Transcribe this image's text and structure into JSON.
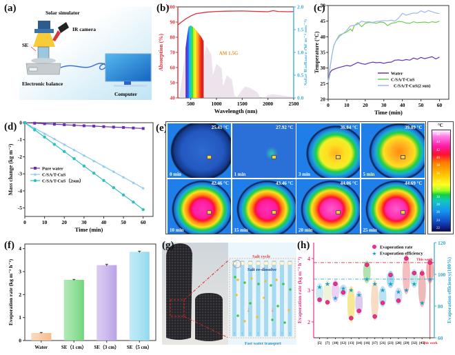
{
  "panel_labels": {
    "a": "(a)",
    "b": "(b)",
    "c": "(c)",
    "d": "(d)",
    "e": "(e)",
    "f": "(f)",
    "g": "(g)",
    "h": "(h)"
  },
  "schematic_a": {
    "solar_simulator": "Solar simulator",
    "ir_camera": "IR camera",
    "se": "SE",
    "balance": "Electronic balance",
    "computer": "Computer"
  },
  "schematic_g": {
    "salt_cycle": "Salt cycle",
    "salt_redissolve": "Salt re-dissolve",
    "fast_water": "Fast water transport"
  },
  "ir_images": {
    "frames": [
      {
        "time": "0 min",
        "temp": "25.41 °C",
        "state": "cold"
      },
      {
        "time": "1 min",
        "temp": "27.92 °C",
        "state": "cold2"
      },
      {
        "time": "3 min",
        "temp": "36.84 °C",
        "state": "warm"
      },
      {
        "time": "5 min",
        "temp": "39.09 °C",
        "state": "warm2"
      },
      {
        "time": "10 min",
        "temp": "42.46 °C",
        "state": "hot"
      },
      {
        "time": "15 min",
        "temp": "43.46 °C",
        "state": "hot"
      },
      {
        "time": "20 min",
        "temp": "44.06 °C",
        "state": "hot2"
      },
      {
        "time": "25 min",
        "temp": "44.69 °C",
        "state": "hot2"
      }
    ],
    "colorbar_unit": "°C",
    "colorbar_ticks": [
      "48",
      "44",
      "42",
      "40",
      "38",
      "36",
      "34",
      "32",
      "30",
      "28",
      "26",
      "24",
      "22"
    ]
  },
  "chart_data": [
    {
      "id": "b",
      "type": "line+area",
      "xlabel": "Wavelength (nm)",
      "ylabel": "Absorption (%)",
      "y2label": "Solar Radiance (W m⁻² nm⁻¹)",
      "xlim": [
        250,
        2500
      ],
      "ylim": [
        40,
        100
      ],
      "y2lim": [
        0,
        2.0
      ],
      "xticks": [
        500,
        1000,
        1500,
        2000,
        2500
      ],
      "yticks": [
        40,
        50,
        60,
        70,
        80,
        90,
        100
      ],
      "y2ticks": [
        0.0,
        0.5,
        1.0,
        1.5,
        2.0
      ],
      "annotation": "AM 1.5G",
      "absorption": {
        "name": "Absorption",
        "x": [
          250,
          300,
          400,
          500,
          600,
          800,
          1000,
          1200,
          1500,
          1700,
          2000,
          2100,
          2200,
          2400,
          2500
        ],
        "y": [
          88,
          89.5,
          92,
          94,
          95.5,
          96.5,
          97,
          97.2,
          97.3,
          97.1,
          96.8,
          97.5,
          97,
          96.8,
          96.9
        ]
      },
      "am15g": {
        "name": "AM 1.5G",
        "x": [
          280,
          350,
          400,
          450,
          500,
          550,
          600,
          650,
          700,
          750,
          760,
          800,
          900,
          930,
          1000,
          1100,
          1130,
          1200,
          1300,
          1350,
          1400,
          1450,
          1550,
          1650,
          1800,
          1850,
          1950,
          2000,
          2100,
          2300,
          2500
        ],
        "y": [
          0,
          0.6,
          1.1,
          1.55,
          1.6,
          1.55,
          1.5,
          1.42,
          1.35,
          1.25,
          0.9,
          1.15,
          0.95,
          0.5,
          0.75,
          0.65,
          0.25,
          0.5,
          0.4,
          0.05,
          0.02,
          0.1,
          0.25,
          0.22,
          0.12,
          0.0,
          0.02,
          0.06,
          0.08,
          0.05,
          0.02
        ]
      }
    },
    {
      "id": "c",
      "type": "line",
      "xlabel": "Time (min)",
      "ylabel": "Temperature (°C)",
      "xlim": [
        0,
        65
      ],
      "ylim": [
        20,
        50
      ],
      "xticks": [
        0,
        10,
        20,
        30,
        40,
        50,
        60
      ],
      "yticks": [
        20,
        25,
        30,
        35,
        40,
        45,
        50
      ],
      "series": [
        {
          "name": "Water",
          "color": "#6a2fb0",
          "x": [
            0,
            1,
            2,
            4,
            6,
            8,
            10,
            12,
            14,
            16,
            18,
            20,
            22,
            24,
            26,
            28,
            30,
            32,
            34,
            36,
            38,
            40,
            42,
            44,
            46,
            48,
            50,
            52,
            54,
            56,
            58,
            60
          ],
          "y": [
            25.5,
            28.5,
            29.3,
            29.8,
            30.2,
            30.5,
            30.8,
            30.6,
            31.2,
            31.8,
            31.4,
            31.2,
            31.6,
            31.9,
            31.7,
            31.8,
            31.5,
            31.8,
            31.9,
            32.5,
            32.6,
            32.4,
            32.7,
            32.5,
            33.2,
            32.8,
            33.4,
            33.0,
            33.3,
            33.6,
            32.9,
            33.5
          ]
        },
        {
          "name": "C/SA/T-CuS",
          "color": "#6ccf4f",
          "x": [
            0,
            1,
            2,
            3,
            4,
            6,
            8,
            10,
            12,
            13,
            14,
            16,
            18,
            20,
            22,
            24,
            26,
            28,
            30,
            32,
            34,
            36,
            38,
            40,
            42,
            44,
            46,
            48,
            50,
            52,
            54,
            56,
            58,
            60
          ],
          "y": [
            25.5,
            30,
            34,
            37,
            38.5,
            40.5,
            41,
            41.5,
            42.5,
            41.8,
            43.5,
            44.5,
            43.2,
            44.3,
            44.6,
            44.5,
            44.3,
            44.7,
            44.6,
            43.6,
            44.3,
            44.5,
            44.9,
            44.8,
            44.4,
            44.3,
            44.8,
            44.5,
            44.6,
            44.7,
            44.5,
            44.8,
            44.6,
            45
          ]
        },
        {
          "name": "C/SA/T-CuS(2 sun)",
          "color": "#9fb6f0",
          "x": [
            0,
            1,
            2,
            3,
            4,
            6,
            8,
            10,
            12,
            14,
            16,
            18,
            20,
            22,
            24,
            26,
            28,
            30,
            32,
            34,
            36,
            38,
            40,
            42,
            44,
            46,
            48,
            50,
            52,
            54,
            56,
            58,
            60
          ],
          "y": [
            25.5,
            30,
            34,
            37.2,
            38.5,
            40,
            41,
            42,
            43.5,
            43.6,
            44,
            45,
            44.7,
            44.8,
            44.6,
            44.9,
            45,
            45.2,
            45.1,
            45.3,
            45,
            46,
            47.5,
            46.9,
            47.3,
            47.6,
            47.5,
            48.3,
            47.8,
            48.4,
            48,
            47.6,
            47.4
          ]
        }
      ]
    },
    {
      "id": "d",
      "type": "line",
      "xlabel": "Time (min)",
      "ylabel": "Mass change (kg m⁻²)",
      "xlim": [
        0,
        65
      ],
      "ylim": [
        -5.5,
        0
      ],
      "xticks": [
        0,
        10,
        20,
        30,
        40,
        50,
        60
      ],
      "yticks": [
        0,
        -1,
        -2,
        -3,
        -4,
        -5
      ],
      "series": [
        {
          "name": "Pure water",
          "color": "#6a2fb0",
          "marker": "square",
          "x": [
            0,
            5,
            10,
            15,
            20,
            25,
            30,
            35,
            40,
            45,
            50,
            55,
            60
          ],
          "y": [
            0,
            -0.03,
            -0.06,
            -0.09,
            -0.12,
            -0.15,
            -0.18,
            -0.2,
            -0.23,
            -0.26,
            -0.28,
            -0.31,
            -0.34
          ]
        },
        {
          "name": "C/SA/T-CuS",
          "color": "#8ec8e8",
          "marker": "star",
          "x": [
            0,
            5,
            10,
            15,
            20,
            25,
            30,
            35,
            40,
            45,
            50,
            55,
            60
          ],
          "y": [
            0,
            -0.32,
            -0.64,
            -0.96,
            -1.28,
            -1.6,
            -1.92,
            -2.24,
            -2.56,
            -2.88,
            -3.2,
            -3.52,
            -3.85
          ]
        },
        {
          "name": "C/SA/T-CuS（2sun）",
          "color": "#2cc0c0",
          "marker": "circle",
          "x": [
            0,
            5,
            10,
            15,
            20,
            25,
            30,
            35,
            40,
            45,
            50,
            55,
            60
          ],
          "y": [
            0,
            -0.42,
            -0.84,
            -1.27,
            -1.69,
            -2.11,
            -2.54,
            -2.96,
            -3.39,
            -3.81,
            -4.24,
            -4.66,
            -5.1
          ]
        }
      ]
    },
    {
      "id": "f",
      "type": "bar",
      "xlabel": "",
      "ylabel": "Evoporation rate (kg m⁻² h⁻¹)",
      "ylim": [
        0,
        4.2
      ],
      "yticks": [
        0,
        1,
        2,
        3,
        4
      ],
      "categories": [
        "Water",
        "SE（1 cm）",
        "SE（3 cm）",
        "SE（5 cm）"
      ],
      "values": [
        0.33,
        2.64,
        3.28,
        3.86
      ],
      "errors": [
        0.02,
        0.02,
        0.04,
        0.03
      ],
      "colors": [
        "#f7b98a",
        "#6fd67a",
        "#b9a0e6",
        "#8fd8ee"
      ]
    },
    {
      "id": "h",
      "type": "scatter",
      "xlabel": "",
      "ylabel": "Evaporation rate (kg m⁻² h⁻¹)",
      "y2label": "Evaporation efficiency(100%)",
      "ylim": [
        1.5,
        4.5
      ],
      "y2lim": [
        60,
        120
      ],
      "yticks": [
        2,
        3,
        4
      ],
      "y2ticks": [
        60,
        80,
        100,
        120
      ],
      "categories": [
        "[5]",
        "[7]",
        "[10]",
        "[12]",
        "[13]",
        "[14]",
        "[16]",
        "[17]",
        "[21]",
        "[23]",
        "[28]",
        "[29]",
        "[32]",
        "[45]",
        "This work"
      ],
      "legend": [
        "Evaporation rate",
        "Evaporation efficiency"
      ],
      "annotation": "This work",
      "rate_ref_line": 3.87,
      "eff_ref_line": 97,
      "rate": [
        2.7,
        2.62,
        3.2,
        2.93,
        2.12,
        2.35,
        3.8,
        2.17,
        2.6,
        3.48,
        2.67,
        4.0,
        3.54,
        3.53,
        3.87
      ],
      "efficiency": [
        92,
        94,
        85,
        91,
        90,
        87,
        97,
        94,
        90,
        94,
        89,
        90,
        94,
        82,
        97
      ],
      "ellipse_colors": [
        "#bfe6ef",
        "#eef0d0",
        "#e6c5ef",
        "#b8dcef",
        "#f5e27a",
        "#d3c0ea",
        "#9ddc98",
        "#f6d5b5",
        "#a8dcef",
        "#8fd0ef",
        "#c3d7f2",
        "#f2aeb0",
        "#b8e2e2",
        "#e8a8a8",
        "#f29c9c"
      ]
    }
  ]
}
